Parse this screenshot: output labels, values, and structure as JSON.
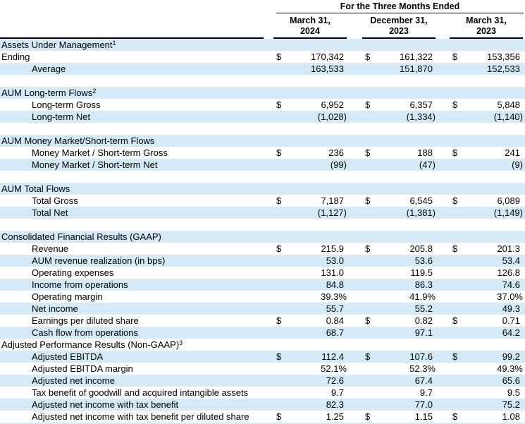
{
  "currency_symbol": "$",
  "colors": {
    "band_blue": "#d4ebf7",
    "border_black": "#000000",
    "text": "#000000",
    "background": "#ffffff"
  },
  "header": {
    "span_title": "For the Three Months Ended",
    "columns": [
      {
        "line1": "March 31,",
        "line2": "2024"
      },
      {
        "line1": "December 31,",
        "line2": "2023"
      },
      {
        "line1": "March 31,",
        "line2": "2023"
      }
    ]
  },
  "rows": [
    {
      "type": "section",
      "label": "Assets Under Management",
      "sup": "1"
    },
    {
      "type": "data",
      "label": "Ending",
      "indent": false,
      "dollar": true,
      "values": [
        "170,342",
        "161,322",
        "153,356"
      ]
    },
    {
      "type": "data",
      "label": "Average",
      "indent": true,
      "dollar": false,
      "values": [
        "163,533",
        "151,870",
        "152,533"
      ]
    },
    {
      "type": "blank"
    },
    {
      "type": "section",
      "label": "AUM Long-term Flows",
      "sup": "2"
    },
    {
      "type": "data",
      "label": "Long-term Gross",
      "indent": true,
      "dollar": true,
      "values": [
        "6,952",
        "6,357",
        "5,848"
      ]
    },
    {
      "type": "data",
      "label": "Long-term Net",
      "indent": true,
      "dollar": false,
      "values": [
        "(1,028)",
        "(1,334)",
        "(1,140)"
      ]
    },
    {
      "type": "blank"
    },
    {
      "type": "section",
      "label": "AUM Money Market/Short-term Flows"
    },
    {
      "type": "data",
      "label": "Money Market / Short-term Gross",
      "indent": true,
      "dollar": true,
      "values": [
        "236",
        "188",
        "241"
      ]
    },
    {
      "type": "data",
      "label": "Money Market / Short-term Net",
      "indent": true,
      "dollar": false,
      "values": [
        "(99)",
        "(47)",
        "(9)"
      ]
    },
    {
      "type": "blank"
    },
    {
      "type": "section",
      "label": "AUM Total Flows"
    },
    {
      "type": "data",
      "label": "Total Gross",
      "indent": true,
      "dollar": true,
      "values": [
        "7,187",
        "6,545",
        "6,089"
      ]
    },
    {
      "type": "data",
      "label": "Total Net",
      "indent": true,
      "dollar": false,
      "values": [
        "(1,127)",
        "(1,381)",
        "(1,149)"
      ]
    },
    {
      "type": "blank"
    },
    {
      "type": "section",
      "label": "Consolidated Financial Results (GAAP)"
    },
    {
      "type": "data",
      "label": "Revenue",
      "indent": true,
      "dollar": true,
      "values": [
        "215.9",
        "205.8",
        "201.3"
      ]
    },
    {
      "type": "data",
      "label": "AUM revenue realization (in bps)",
      "indent": true,
      "dollar": false,
      "values": [
        "53.0",
        "53.6",
        "53.4"
      ]
    },
    {
      "type": "data",
      "label": "Operating expenses",
      "indent": true,
      "dollar": false,
      "values": [
        "131.0",
        "119.5",
        "126.8"
      ]
    },
    {
      "type": "data",
      "label": "Income from operations",
      "indent": true,
      "dollar": false,
      "values": [
        "84.8",
        "86.3",
        "74.6"
      ]
    },
    {
      "type": "data",
      "label": "Operating margin",
      "indent": true,
      "dollar": false,
      "values": [
        "39.3%",
        "41.9%",
        "37.0%"
      ]
    },
    {
      "type": "data",
      "label": "Net income",
      "indent": true,
      "dollar": false,
      "values": [
        "55.7",
        "55.2",
        "49.3"
      ]
    },
    {
      "type": "data",
      "label": "Earnings per diluted share",
      "indent": true,
      "dollar": true,
      "values": [
        "0.84",
        "0.82",
        "0.71"
      ]
    },
    {
      "type": "data",
      "label": "Cash flow from operations",
      "indent": true,
      "dollar": false,
      "values": [
        "68.7",
        "97.1",
        "64.2"
      ]
    },
    {
      "type": "section",
      "label": "Adjusted Performance Results (Non-GAAP)",
      "sup": "3"
    },
    {
      "type": "data",
      "label": "Adjusted EBITDA",
      "indent": true,
      "dollar": true,
      "values": [
        "112.4",
        "107.6",
        "99.2"
      ]
    },
    {
      "type": "data",
      "label": "Adjusted EBITDA margin",
      "indent": true,
      "dollar": false,
      "values": [
        "52.1%",
        "52.3%",
        "49.3%"
      ]
    },
    {
      "type": "data",
      "label": "Adjusted net income",
      "indent": true,
      "dollar": false,
      "values": [
        "72.6",
        "67.4",
        "65.6"
      ]
    },
    {
      "type": "data",
      "label": "Tax benefit of goodwill and acquired intangible assets",
      "indent": true,
      "dollar": false,
      "values": [
        "9.7",
        "9.7",
        "9.5"
      ]
    },
    {
      "type": "data",
      "label": "Adjusted net income with tax benefit",
      "indent": true,
      "dollar": false,
      "values": [
        "82.3",
        "77.0",
        "75.2"
      ]
    },
    {
      "type": "data",
      "label": "Adjusted net income with tax benefit per diluted share",
      "indent": true,
      "dollar": true,
      "values": [
        "1.25",
        "1.15",
        "1.08"
      ]
    }
  ]
}
